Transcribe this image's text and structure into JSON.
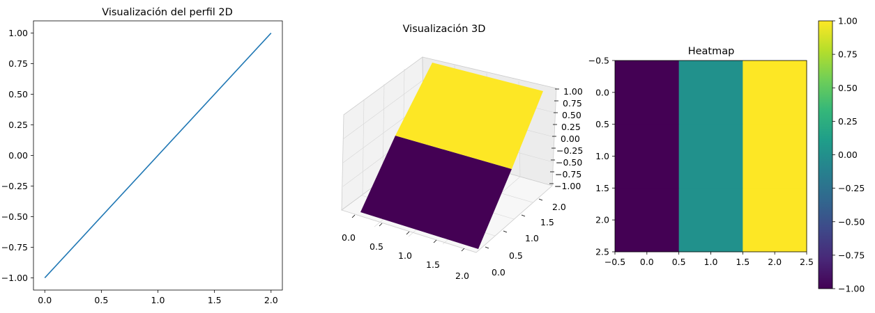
{
  "chart_data": [
    {
      "type": "line",
      "title": "Visualización del perfil 2D",
      "x": [
        0,
        2
      ],
      "series": [
        {
          "values": [
            -1,
            1
          ],
          "color": "#1f77b4"
        }
      ],
      "xlim": [
        -0.1,
        2.1
      ],
      "ylim": [
        -1.1,
        1.1
      ],
      "xticks": [
        0,
        0.5,
        1,
        1.5,
        2
      ],
      "xtick_labels": [
        "0.0",
        "0.5",
        "1.0",
        "1.5",
        "2.0"
      ],
      "yticks": [
        1,
        0.75,
        0.5,
        0.25,
        0,
        -0.25,
        -0.5,
        -0.75,
        -1
      ],
      "ytick_labels": [
        "1.00",
        "0.75",
        "0.50",
        "0.25",
        "0.00",
        "−0.25",
        "−0.50",
        "−0.75",
        "−1.00"
      ],
      "grid": false
    },
    {
      "type": "surface3d",
      "title": "Visualización 3D",
      "x": [
        0,
        1,
        2
      ],
      "y": [
        0,
        1,
        2
      ],
      "z": [
        [
          -1,
          0,
          1
        ],
        [
          -1,
          0,
          1
        ],
        [
          -1,
          0,
          1
        ]
      ],
      "face_colors": [
        "#440154",
        "#fde725"
      ],
      "xtick_labels": [
        "0.0",
        "0.5",
        "1.0",
        "1.5",
        "2.0"
      ],
      "ytick_labels": [
        "0.0",
        "0.5",
        "1.0",
        "1.5",
        "2.0"
      ],
      "ztick_labels": [
        "1.00",
        "0.75",
        "0.50",
        "0.25",
        "0.00",
        "−0.25",
        "−0.50",
        "−0.75",
        "−1.00"
      ],
      "zlim": [
        -1,
        1
      ]
    },
    {
      "type": "heatmap",
      "title": "Heatmap",
      "columns": [
        0,
        1,
        2
      ],
      "rows": [
        0,
        1,
        2
      ],
      "values": [
        [
          -1,
          0,
          1
        ],
        [
          -1,
          0,
          1
        ],
        [
          -1,
          0,
          1
        ]
      ],
      "cell_colors": [
        "#440154",
        "#21918c",
        "#fde725"
      ],
      "xlim": [
        -0.5,
        2.5
      ],
      "ylim": [
        2.5,
        -0.5
      ],
      "xtick_labels": [
        "−0.5",
        "0.0",
        "0.5",
        "1.0",
        "1.5",
        "2.0",
        "2.5"
      ],
      "ytick_labels": [
        "−0.5",
        "0.0",
        "0.5",
        "1.0",
        "1.5",
        "2.0",
        "2.5"
      ],
      "colorbar": {
        "range": [
          -1,
          1
        ],
        "colors": [
          "#440154",
          "#482878",
          "#3e4989",
          "#31688e",
          "#26828e",
          "#1f9e89",
          "#35b779",
          "#6ece58",
          "#b5de2b",
          "#fde725"
        ],
        "tick_labels": [
          "1.00",
          "0.75",
          "0.50",
          "0.25",
          "0.00",
          "−0.25",
          "−0.50",
          "−0.75",
          "−1.00"
        ]
      }
    }
  ]
}
